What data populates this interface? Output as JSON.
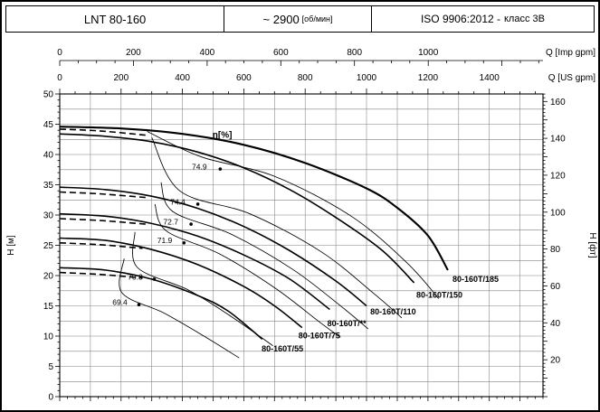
{
  "header": {
    "model": "LNT 80-160",
    "speed": "~ 2900",
    "speed_unit": "[об/мин]",
    "standard": "ISO 9906:2012 -",
    "standard_class": "класс 3В"
  },
  "chart_data": {
    "type": "line",
    "title": "LNT 80-160 pump performance curves (H-Q)",
    "colors": {
      "ink": "#000000",
      "grid": "#808080"
    },
    "x_axis": {
      "us_gpm_max": 1575,
      "imp_to_us": 1.20095
    },
    "y_axis": {
      "h_m_max": 50,
      "ft_to_m": 0.3048
    },
    "axes": {
      "top_imp": {
        "unit": "Q [Imp gpm]",
        "ticks": [
          0,
          200,
          400,
          600,
          800,
          1000
        ]
      },
      "top_us": {
        "unit": "Q [US gpm]",
        "ticks": [
          0,
          200,
          400,
          600,
          800,
          1000,
          1200,
          1400
        ]
      },
      "left": {
        "unit": "H [м]",
        "ticks": [
          0,
          5,
          10,
          15,
          20,
          25,
          30,
          35,
          40,
          45,
          50
        ]
      },
      "right": {
        "unit": "H [фт]",
        "ticks": [
          20,
          40,
          60,
          80,
          100,
          120,
          140,
          160
        ]
      }
    },
    "eta_title": "η[%]",
    "eta_title_at": [
      498,
      43.2
    ],
    "efficiency_curves": [
      {
        "value": "74.9",
        "label_at": [
          455,
          38.0
        ],
        "dot_at": [
          523,
          37.6
        ],
        "points": [
          [
            285,
            43.8
          ],
          [
            462,
            39.6
          ],
          [
            700,
            36.4
          ],
          [
            950,
            29.8
          ],
          [
            1130,
            22.2
          ],
          [
            1235,
            16.2
          ]
        ]
      },
      {
        "value": "74.4",
        "label_at": [
          385,
          32.2
        ],
        "dot_at": [
          450,
          31.8
        ],
        "points": [
          [
            300,
            42.8
          ],
          [
            391,
            34.0
          ],
          [
            620,
            30.2
          ],
          [
            850,
            24.0
          ],
          [
            1020,
            17.2
          ],
          [
            1115,
            13.0
          ]
        ]
      },
      {
        "value": "72.7",
        "label_at": [
          362,
          28.9
        ],
        "dot_at": [
          428,
          28.5
        ],
        "points": [
          [
            330,
            35.4
          ],
          [
            368,
            30.6
          ],
          [
            560,
            26.8
          ],
          [
            760,
            21.0
          ],
          [
            920,
            14.8
          ],
          [
            1005,
            11.2
          ]
        ]
      },
      {
        "value": "71.9",
        "label_at": [
          342,
          25.8
        ],
        "dot_at": [
          405,
          25.4
        ],
        "points": [
          [
            310,
            31.8
          ],
          [
            347,
            27.4
          ],
          [
            520,
            23.6
          ],
          [
            700,
            18.0
          ],
          [
            850,
            12.2
          ],
          [
            915,
            9.8
          ]
        ]
      },
      {
        "value": "70.8",
        "label_at": [
          246,
          19.8
        ],
        "dot_at": [
          308,
          19.4
        ],
        "points": [
          [
            245,
            27.2
          ],
          [
            252,
            21.4
          ],
          [
            420,
            17.6
          ],
          [
            560,
            13.2
          ],
          [
            695,
            8.4
          ]
        ]
      },
      {
        "value": "69.4",
        "label_at": [
          196,
          15.6
        ],
        "dot_at": [
          258,
          15.2
        ],
        "points": [
          [
            210,
            22.8
          ],
          [
            202,
            17.2
          ],
          [
            340,
            13.8
          ],
          [
            470,
            10.0
          ],
          [
            585,
            6.4
          ]
        ]
      }
    ],
    "trim_dashed_curves": [
      {
        "points": [
          [
            0,
            44.2
          ],
          [
            130,
            43.9
          ],
          [
            280,
            43.2
          ]
        ]
      },
      {
        "points": [
          [
            0,
            33.8
          ],
          [
            130,
            33.5
          ],
          [
            280,
            32.9
          ]
        ]
      },
      {
        "points": [
          [
            0,
            29.4
          ],
          [
            130,
            29.1
          ],
          [
            280,
            28.5
          ]
        ]
      },
      {
        "points": [
          [
            0,
            25.4
          ],
          [
            130,
            25.1
          ],
          [
            270,
            24.5
          ]
        ]
      },
      {
        "points": [
          [
            0,
            20.5
          ],
          [
            130,
            20.2
          ],
          [
            270,
            19.6
          ]
        ]
      }
    ],
    "pump_curves": [
      {
        "name": "80-160T/185",
        "bold": true,
        "label_at": [
          1280,
          19.4
        ],
        "points": [
          [
            0,
            44.6
          ],
          [
            200,
            44.3
          ],
          [
            400,
            43.4
          ],
          [
            600,
            41.6
          ],
          [
            800,
            38.6
          ],
          [
            1000,
            34.4
          ],
          [
            1100,
            31.2
          ],
          [
            1200,
            26.6
          ],
          [
            1265,
            20.9
          ]
        ]
      },
      {
        "name": "80-160T/150",
        "bold": false,
        "label_at": [
          1162,
          16.8
        ],
        "points": [
          [
            0,
            43.4
          ],
          [
            150,
            43.0
          ],
          [
            300,
            42.1
          ],
          [
            450,
            40.4
          ],
          [
            600,
            37.8
          ],
          [
            750,
            34.2
          ],
          [
            900,
            29.6
          ],
          [
            1050,
            24.2
          ],
          [
            1155,
            18.8
          ]
        ]
      },
      {
        "name": "80-160T/110",
        "bold": false,
        "label_at": [
          1012,
          14.0
        ],
        "points": [
          [
            0,
            34.6
          ],
          [
            150,
            34.2
          ],
          [
            300,
            33.1
          ],
          [
            450,
            31.1
          ],
          [
            600,
            28.1
          ],
          [
            750,
            24.1
          ],
          [
            900,
            19.1
          ],
          [
            1000,
            15.0
          ]
        ]
      },
      {
        "name": "80-160T/**",
        "bold": false,
        "label_at": [
          872,
          12.1
        ],
        "points": [
          [
            0,
            30.2
          ],
          [
            150,
            29.8
          ],
          [
            300,
            28.6
          ],
          [
            450,
            26.5
          ],
          [
            600,
            23.4
          ],
          [
            750,
            19.4
          ],
          [
            880,
            14.4
          ]
        ]
      },
      {
        "name": "80-160T/75",
        "bold": false,
        "label_at": [
          778,
          10.1
        ],
        "points": [
          [
            0,
            26.2
          ],
          [
            150,
            25.8
          ],
          [
            300,
            24.3
          ],
          [
            450,
            21.8
          ],
          [
            600,
            18.2
          ],
          [
            700,
            15.0
          ],
          [
            790,
            11.4
          ]
        ]
      },
      {
        "name": "80-160T/55",
        "bold": false,
        "label_at": [
          658,
          7.9
        ],
        "points": [
          [
            0,
            21.3
          ],
          [
            150,
            20.9
          ],
          [
            300,
            19.4
          ],
          [
            450,
            16.7
          ],
          [
            550,
            14.1
          ],
          [
            660,
            9.5
          ]
        ]
      }
    ]
  }
}
